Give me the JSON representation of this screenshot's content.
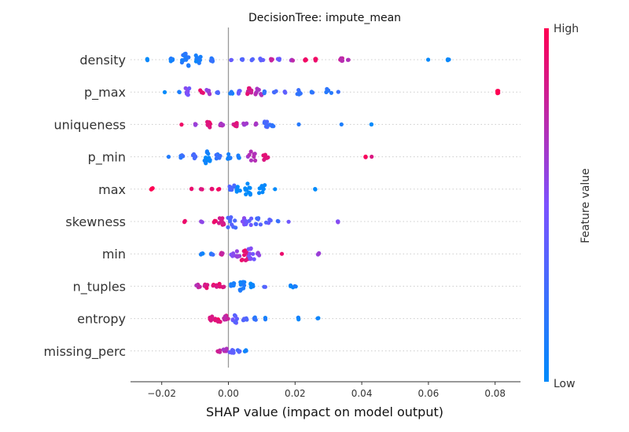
{
  "chart_data": {
    "type": "scatter",
    "subtype": "shap-beeswarm",
    "title": "DecisionTree: impute_mean",
    "xlabel": "SHAP value (impact on model output)",
    "xlim": [
      -0.029,
      0.087
    ],
    "xticks": [
      -0.02,
      0.0,
      0.02,
      0.04,
      0.06,
      0.08
    ],
    "xtick_labels": [
      "−0.02",
      "0.00",
      "0.02",
      "0.04",
      "0.06",
      "0.08"
    ],
    "colorbar": {
      "label": "Feature value",
      "high_label": "High",
      "low_label": "Low",
      "low_color": "#008bfb",
      "high_color": "#ff0052"
    },
    "features": [
      {
        "name": "density",
        "clusters": [
          [
            -0.024,
            0.0,
            2,
            0.3
          ],
          [
            -0.017,
            0.1,
            6,
            0.4
          ],
          [
            -0.013,
            0.15,
            18,
            1.0
          ],
          [
            -0.009,
            0.1,
            10,
            0.7
          ],
          [
            -0.005,
            0.2,
            6,
            0.4
          ],
          [
            0.001,
            0.4,
            2,
            0.2
          ],
          [
            0.004,
            0.3,
            3,
            0.3
          ],
          [
            0.007,
            0.3,
            4,
            0.3
          ],
          [
            0.01,
            0.4,
            4,
            0.4
          ],
          [
            0.013,
            0.8,
            3,
            0.3
          ],
          [
            0.015,
            0.4,
            3,
            0.3
          ],
          [
            0.019,
            0.7,
            4,
            0.4
          ],
          [
            0.023,
            0.95,
            4,
            0.3
          ],
          [
            0.026,
            0.95,
            4,
            0.3
          ],
          [
            0.034,
            0.75,
            5,
            0.4
          ],
          [
            0.036,
            0.7,
            2,
            0.2
          ],
          [
            0.06,
            0.0,
            1,
            0.1
          ],
          [
            0.066,
            0.0,
            3,
            0.2
          ]
        ]
      },
      {
        "name": "p_max",
        "clusters": [
          [
            -0.019,
            0.0,
            1,
            0.1
          ],
          [
            -0.015,
            0.1,
            2,
            0.3
          ],
          [
            -0.012,
            0.5,
            8,
            0.8
          ],
          [
            -0.008,
            0.9,
            4,
            0.6
          ],
          [
            -0.006,
            0.6,
            5,
            0.6
          ],
          [
            -0.003,
            0.3,
            3,
            0.4
          ],
          [
            0.001,
            0.1,
            4,
            0.5
          ],
          [
            0.003,
            0.4,
            4,
            0.5
          ],
          [
            0.006,
            0.85,
            8,
            0.8
          ],
          [
            0.009,
            0.7,
            8,
            0.8
          ],
          [
            0.011,
            0.2,
            3,
            0.4
          ],
          [
            0.014,
            0.3,
            3,
            0.3
          ],
          [
            0.017,
            0.35,
            3,
            0.3
          ],
          [
            0.021,
            0.2,
            5,
            0.6
          ],
          [
            0.025,
            0.2,
            3,
            0.3
          ],
          [
            0.03,
            0.2,
            5,
            0.8
          ],
          [
            0.033,
            0.2,
            1,
            0.1
          ],
          [
            0.081,
            1.0,
            6,
            0.3
          ]
        ]
      },
      {
        "name": "uniqueness",
        "clusters": [
          [
            -0.014,
            0.9,
            1,
            0.1
          ],
          [
            -0.01,
            0.6,
            3,
            0.2
          ],
          [
            -0.006,
            0.9,
            10,
            0.5
          ],
          [
            -0.002,
            0.7,
            6,
            0.4
          ],
          [
            0.002,
            0.85,
            6,
            0.5
          ],
          [
            0.005,
            0.6,
            5,
            0.5
          ],
          [
            0.008,
            0.7,
            4,
            0.3
          ],
          [
            0.011,
            0.3,
            8,
            0.6
          ],
          [
            0.013,
            0.2,
            5,
            0.5
          ],
          [
            0.021,
            0.1,
            1,
            0.1
          ],
          [
            0.034,
            0.1,
            1,
            0.1
          ],
          [
            0.043,
            0.0,
            2,
            0.1
          ]
        ]
      },
      {
        "name": "p_min",
        "clusters": [
          [
            -0.018,
            0.1,
            1,
            0.1
          ],
          [
            -0.014,
            0.2,
            6,
            0.4
          ],
          [
            -0.01,
            0.3,
            6,
            0.6
          ],
          [
            -0.006,
            0.05,
            12,
            1.0
          ],
          [
            -0.003,
            0.2,
            6,
            0.6
          ],
          [
            0.0,
            0.1,
            6,
            0.6
          ],
          [
            0.003,
            0.1,
            4,
            0.5
          ],
          [
            0.007,
            0.7,
            8,
            1.0
          ],
          [
            0.011,
            0.9,
            6,
            0.8
          ],
          [
            0.041,
            0.95,
            3,
            0.2
          ],
          [
            0.043,
            0.9,
            1,
            0.1
          ]
        ]
      },
      {
        "name": "max",
        "clusters": [
          [
            -0.023,
            1.0,
            4,
            0.3
          ],
          [
            -0.011,
            0.95,
            2,
            0.2
          ],
          [
            -0.008,
            0.9,
            3,
            0.2
          ],
          [
            -0.005,
            0.95,
            3,
            0.2
          ],
          [
            -0.003,
            0.95,
            2,
            0.2
          ],
          [
            0.001,
            0.3,
            8,
            0.7
          ],
          [
            0.003,
            0.0,
            6,
            0.6
          ],
          [
            0.006,
            0.0,
            10,
            0.9
          ],
          [
            0.01,
            0.0,
            8,
            0.8
          ],
          [
            0.014,
            0.0,
            1,
            0.1
          ],
          [
            0.026,
            0.0,
            2,
            0.1
          ]
        ]
      },
      {
        "name": "skewness",
        "clusters": [
          [
            -0.013,
            0.95,
            2,
            0.2
          ],
          [
            -0.008,
            0.6,
            3,
            0.3
          ],
          [
            -0.004,
            0.9,
            3,
            0.3
          ],
          [
            -0.002,
            0.85,
            8,
            0.7
          ],
          [
            0.001,
            0.3,
            10,
            1.0
          ],
          [
            0.004,
            0.5,
            6,
            0.8
          ],
          [
            0.006,
            0.4,
            6,
            0.8
          ],
          [
            0.009,
            0.3,
            6,
            0.8
          ],
          [
            0.012,
            0.4,
            4,
            0.6
          ],
          [
            0.015,
            0.2,
            2,
            0.3
          ],
          [
            0.018,
            0.4,
            1,
            0.1
          ],
          [
            0.033,
            0.5,
            3,
            0.3
          ]
        ]
      },
      {
        "name": "min",
        "clusters": [
          [
            -0.008,
            0.1,
            4,
            0.3
          ],
          [
            -0.005,
            0.2,
            4,
            0.4
          ],
          [
            -0.002,
            0.8,
            4,
            0.3
          ],
          [
            0.001,
            0.5,
            6,
            0.5
          ],
          [
            0.003,
            0.6,
            6,
            0.7
          ],
          [
            0.005,
            0.9,
            12,
            1.0
          ],
          [
            0.007,
            0.5,
            10,
            0.9
          ],
          [
            0.009,
            0.55,
            4,
            0.5
          ],
          [
            0.016,
            0.95,
            1,
            0.1
          ],
          [
            0.027,
            0.6,
            4,
            0.2
          ]
        ]
      },
      {
        "name": "n_tuples",
        "clusters": [
          [
            -0.009,
            0.75,
            4,
            0.6
          ],
          [
            -0.007,
            0.85,
            4,
            0.6
          ],
          [
            -0.004,
            0.9,
            4,
            0.6
          ],
          [
            -0.002,
            0.9,
            6,
            0.6
          ],
          [
            0.001,
            0.1,
            6,
            0.7
          ],
          [
            0.004,
            0.1,
            10,
            0.9
          ],
          [
            0.007,
            0.05,
            6,
            0.6
          ],
          [
            0.011,
            0.3,
            2,
            0.3
          ],
          [
            0.019,
            0.05,
            3,
            0.4
          ],
          [
            0.02,
            0.1,
            2,
            0.2
          ]
        ]
      },
      {
        "name": "entropy",
        "clusters": [
          [
            -0.005,
            0.85,
            6,
            0.5
          ],
          [
            -0.003,
            0.9,
            6,
            0.8
          ],
          [
            -0.001,
            0.8,
            6,
            0.8
          ],
          [
            0.002,
            0.4,
            8,
            0.8
          ],
          [
            0.005,
            0.3,
            5,
            0.5
          ],
          [
            0.008,
            0.2,
            4,
            0.4
          ],
          [
            0.011,
            0.1,
            3,
            0.3
          ],
          [
            0.021,
            0.05,
            3,
            0.4
          ],
          [
            0.027,
            0.05,
            2,
            0.3
          ]
        ]
      },
      {
        "name": "missing_perc",
        "clusters": [
          [
            -0.003,
            0.8,
            4,
            0.4
          ],
          [
            -0.001,
            0.7,
            6,
            0.5
          ],
          [
            0.001,
            0.4,
            6,
            0.7
          ],
          [
            0.003,
            0.3,
            4,
            0.4
          ],
          [
            0.005,
            0.1,
            3,
            0.3
          ]
        ]
      }
    ]
  }
}
